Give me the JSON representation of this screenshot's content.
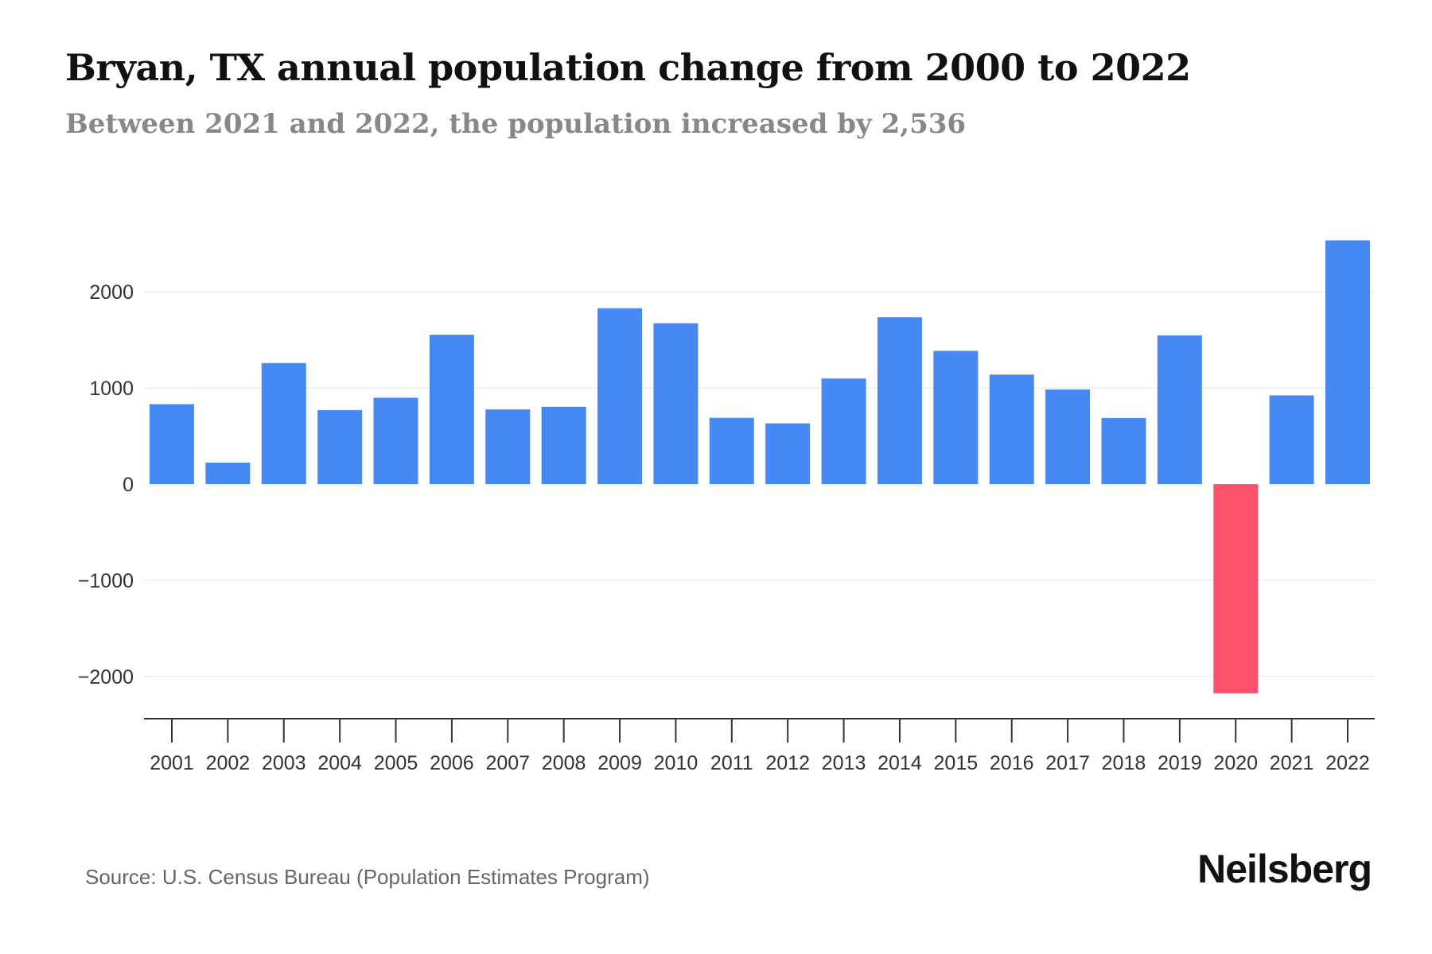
{
  "title": "Bryan, TX annual population change from 2000 to 2022",
  "subtitle": "Between 2021 and 2022, the population increased by 2,536",
  "source": "Source: U.S. Census Bureau (Population Estimates Program)",
  "brand": "Neilsberg",
  "colors": {
    "positive": "#4689f5",
    "negative": "#ff526e",
    "grid": "#eeeeee",
    "axis": "#333333"
  },
  "chart_data": {
    "type": "bar",
    "title": "Bryan, TX annual population change from 2000 to 2022",
    "xlabel": "",
    "ylabel": "",
    "ylim": [
      -2450,
      2650
    ],
    "yticks": [
      -2000,
      -1000,
      0,
      1000,
      2000
    ],
    "ytick_labels": [
      "−2000",
      "−1000",
      "0",
      "1000",
      "2000"
    ],
    "grid": true,
    "categories": [
      "2001",
      "2002",
      "2003",
      "2004",
      "2005",
      "2006",
      "2007",
      "2008",
      "2009",
      "2010",
      "2011",
      "2012",
      "2013",
      "2014",
      "2015",
      "2016",
      "2017",
      "2018",
      "2019",
      "2020",
      "2021",
      "2022"
    ],
    "values": [
      832,
      224,
      1260,
      770,
      899,
      1554,
      778,
      804,
      1830,
      1674,
      690,
      632,
      1099,
      1736,
      1387,
      1140,
      985,
      688,
      1548,
      -2177,
      923,
      2536
    ]
  }
}
